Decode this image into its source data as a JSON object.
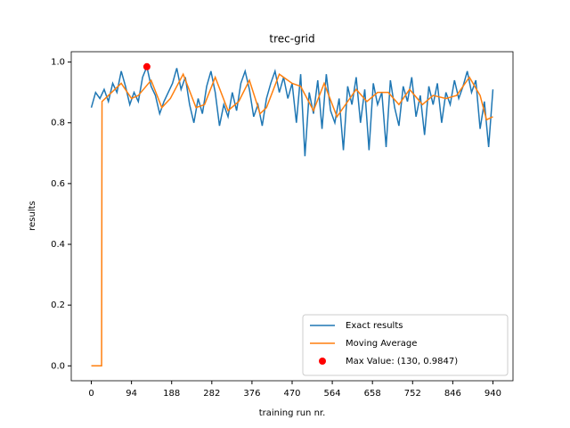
{
  "chart_data": {
    "type": "line",
    "title": "trec-grid",
    "x_label": "training run nr.",
    "y_label": "results",
    "xlim": [
      -47,
      987
    ],
    "ylim": [
      -0.049,
      1.034
    ],
    "xticks": [
      0,
      94,
      188,
      282,
      376,
      470,
      564,
      658,
      752,
      846,
      940
    ],
    "yticks": [
      {
        "value": 0,
        "label": "0.0"
      },
      {
        "value": 0.2,
        "label": "0.2"
      },
      {
        "value": 0.4,
        "label": "0.4"
      },
      {
        "value": 0.6,
        "label": "0.6"
      },
      {
        "value": 0.8,
        "label": "0.8"
      },
      {
        "value": 1,
        "label": "1.0"
      }
    ],
    "legend": "lower right",
    "series": [
      {
        "name": "Exact results",
        "color": "#1f77b4",
        "x": [
          0,
          10,
          20,
          30,
          40,
          50,
          60,
          70,
          80,
          90,
          100,
          110,
          120,
          130,
          140,
          150,
          160,
          170,
          180,
          190,
          200,
          210,
          220,
          230,
          240,
          250,
          260,
          270,
          280,
          290,
          300,
          310,
          320,
          330,
          340,
          350,
          360,
          370,
          380,
          390,
          400,
          410,
          420,
          430,
          440,
          450,
          460,
          470,
          480,
          490,
          500,
          510,
          520,
          530,
          540,
          550,
          560,
          570,
          580,
          590,
          600,
          610,
          620,
          630,
          640,
          650,
          660,
          670,
          680,
          690,
          700,
          710,
          720,
          730,
          740,
          750,
          760,
          770,
          780,
          790,
          800,
          810,
          820,
          830,
          840,
          850,
          860,
          870,
          880,
          890,
          900,
          910,
          920,
          930,
          940
        ],
        "values": [
          0.85,
          0.9,
          0.88,
          0.91,
          0.87,
          0.93,
          0.9,
          0.97,
          0.92,
          0.86,
          0.9,
          0.87,
          0.95,
          0.9847,
          0.92,
          0.89,
          0.83,
          0.87,
          0.9,
          0.93,
          0.98,
          0.91,
          0.95,
          0.86,
          0.8,
          0.88,
          0.83,
          0.92,
          0.97,
          0.9,
          0.79,
          0.86,
          0.82,
          0.9,
          0.84,
          0.93,
          0.97,
          0.91,
          0.82,
          0.86,
          0.79,
          0.88,
          0.93,
          0.97,
          0.9,
          0.95,
          0.88,
          0.93,
          0.8,
          0.96,
          0.69,
          0.9,
          0.83,
          0.94,
          0.78,
          0.96,
          0.84,
          0.8,
          0.88,
          0.71,
          0.92,
          0.86,
          0.95,
          0.8,
          0.91,
          0.71,
          0.93,
          0.86,
          0.9,
          0.72,
          0.94,
          0.85,
          0.79,
          0.92,
          0.87,
          0.95,
          0.82,
          0.89,
          0.76,
          0.92,
          0.86,
          0.93,
          0.8,
          0.9,
          0.86,
          0.94,
          0.88,
          0.92,
          0.97,
          0.9,
          0.94,
          0.78,
          0.87,
          0.72,
          0.91
        ]
      },
      {
        "name": "Moving Average",
        "color": "#ff7f0e",
        "x": [
          0,
          24,
          25,
          40,
          70,
          94,
          110,
          140,
          165,
          185,
          215,
          245,
          265,
          290,
          320,
          345,
          370,
          395,
          410,
          440,
          470,
          490,
          520,
          545,
          575,
          600,
          620,
          645,
          670,
          695,
          720,
          745,
          775,
          800,
          830,
          855,
          885,
          910,
          925,
          940
        ],
        "values": [
          0,
          0,
          0.87,
          0.89,
          0.93,
          0.88,
          0.89,
          0.94,
          0.85,
          0.88,
          0.96,
          0.85,
          0.86,
          0.95,
          0.84,
          0.87,
          0.94,
          0.83,
          0.85,
          0.96,
          0.93,
          0.92,
          0.84,
          0.93,
          0.82,
          0.87,
          0.91,
          0.87,
          0.9,
          0.9,
          0.86,
          0.91,
          0.86,
          0.89,
          0.88,
          0.89,
          0.95,
          0.89,
          0.81,
          0.82
        ]
      }
    ],
    "max_point": {
      "name": "Max Value: (130, 0.9847)",
      "color": "#ff0000",
      "x": 130,
      "y": 0.9847
    }
  }
}
